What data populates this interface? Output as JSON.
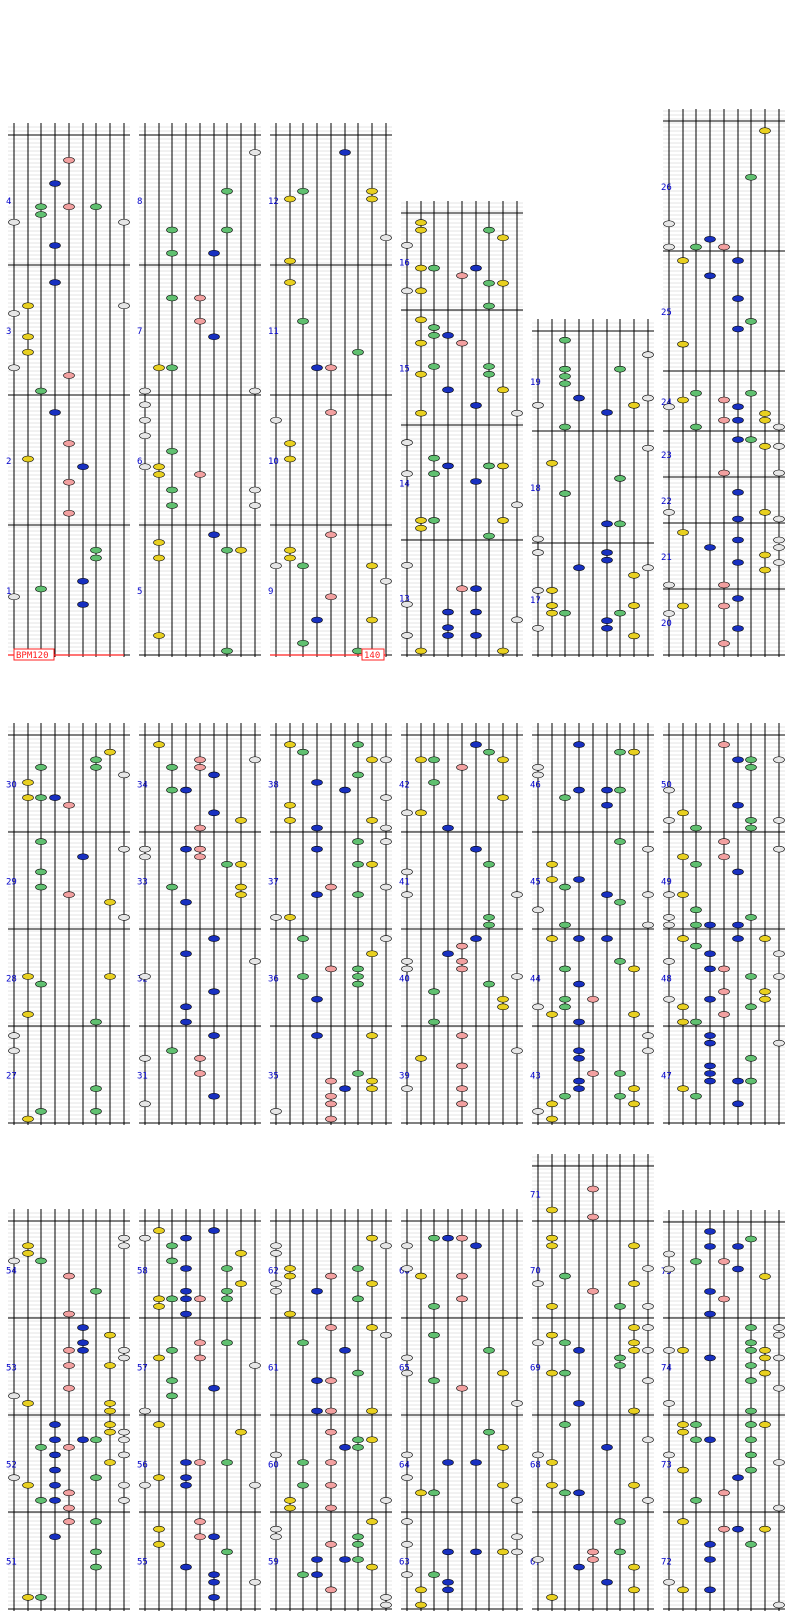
{
  "bpm_label": "BPM120",
  "bpm_change_label": "140",
  "colors": {
    "background": "#ffffff",
    "lane_line": "#000000",
    "bar_line": "#000000",
    "beat_line": "#c8c8c8",
    "measure_number": "#0000cc",
    "bpm_line": "#ff2020",
    "note_white": "#e6e6e6",
    "note_yellow": "#e8d020",
    "note_blue": "#1830c0",
    "note_green": "#60c070",
    "note_pink": "#f2a0a0"
  },
  "lane_note_colors": [
    "white",
    "yellow",
    "green",
    "blue",
    "pink",
    "blue",
    "green",
    "yellow",
    "white"
  ],
  "measure_numbers": [
    "1",
    "2",
    "3",
    "4",
    "5",
    "6",
    "7",
    "8",
    "9",
    "10",
    "11",
    "12",
    "13",
    "14",
    "15",
    "16",
    "17",
    "18",
    "19",
    "20",
    "21",
    "22",
    "23",
    "24",
    "25",
    "26",
    "27",
    "28",
    "29",
    "30",
    "31",
    "32",
    "33",
    "34",
    "35",
    "36",
    "37",
    "38",
    "39",
    "40",
    "41",
    "42",
    "43",
    "44",
    "45",
    "46",
    "47",
    "48",
    "49",
    "50",
    "51",
    "52",
    "53",
    "54",
    "55",
    "56",
    "57",
    "58",
    "59",
    "60",
    "61",
    "62",
    "63",
    "64",
    "65",
    "66",
    "67",
    "68",
    "69",
    "70",
    "71",
    "72",
    "73",
    "74",
    "75"
  ],
  "note_density": [
    0.28,
    0.28,
    0.28,
    0.28,
    0.28,
    0.28,
    0.28,
    0.28,
    0.2,
    0.2,
    0.2,
    0.2,
    0.55,
    0.55,
    0.55,
    0.55,
    0.6,
    0.6,
    0.6,
    0.55,
    0.75,
    0.75,
    0.7,
    0.9,
    0.3,
    0.0,
    0.35,
    0.35,
    0.35,
    0.55,
    0.35,
    0.35,
    0.35,
    0.55,
    0.4,
    0.4,
    0.4,
    0.55,
    0.4,
    0.4,
    0.4,
    0.45,
    0.8,
    0.55,
    0.45,
    0.4,
    0.7,
    0.7,
    0.7,
    0.8,
    0.7,
    0.7,
    0.7,
    0.55,
    0.6,
    0.6,
    0.6,
    0.6,
    0.7,
    0.7,
    0.7,
    0.7,
    0.7,
    0.7,
    0.7,
    0.7,
    0.75,
    0.75,
    0.75,
    0.35,
    0.25,
    0.75,
    0.75,
    0.75,
    0.6
  ]
}
